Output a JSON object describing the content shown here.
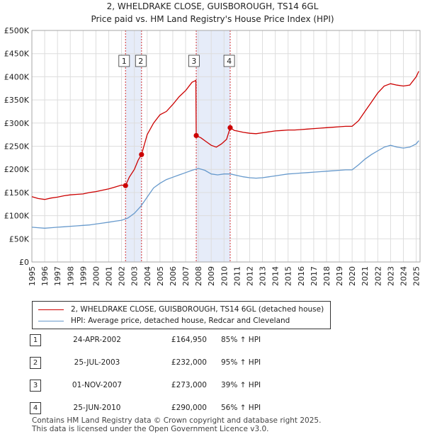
{
  "title": "2, WHELDRAKE CLOSE, GUISBOROUGH, TS14 6GL",
  "subtitle": "Price paid vs. HM Land Registry's House Price Index (HPI)",
  "chart_data": {
    "type": "line",
    "title": "2, WHELDRAKE CLOSE, GUISBOROUGH, TS14 6GL",
    "subtitle": "Price paid vs. HM Land Registry's House Price Index (HPI)",
    "xlim": [
      1995,
      2025.3
    ],
    "ylim": [
      0,
      500000
    ],
    "xticks": [
      1995,
      1996,
      1997,
      1998,
      1999,
      2000,
      2001,
      2002,
      2003,
      2004,
      2005,
      2006,
      2007,
      2008,
      2009,
      2010,
      2011,
      2012,
      2013,
      2014,
      2015,
      2016,
      2017,
      2018,
      2019,
      2020,
      2021,
      2022,
      2023,
      2024,
      2025
    ],
    "yticks": [
      {
        "value": 0,
        "label": "£0"
      },
      {
        "value": 50000,
        "label": "£50K"
      },
      {
        "value": 100000,
        "label": "£100K"
      },
      {
        "value": 150000,
        "label": "£150K"
      },
      {
        "value": 200000,
        "label": "£200K"
      },
      {
        "value": 250000,
        "label": "£250K"
      },
      {
        "value": 300000,
        "label": "£300K"
      },
      {
        "value": 350000,
        "label": "£350K"
      },
      {
        "value": 400000,
        "label": "£400K"
      },
      {
        "value": 450000,
        "label": "£450K"
      },
      {
        "value": 500000,
        "label": "£500K"
      }
    ],
    "grid": true,
    "shaded_periods": [
      [
        2002.31,
        2003.56
      ],
      [
        2007.83,
        2010.48
      ]
    ],
    "series": [
      {
        "name": "2, WHELDRAKE CLOSE, GUISBOROUGH, TS14 6GL (detached house)",
        "color": "#cc0000",
        "x": [
          1995.0,
          1995.5,
          1996.0,
          1996.5,
          1997.0,
          1997.5,
          1998.0,
          1998.5,
          1999.0,
          1999.5,
          2000.0,
          2000.5,
          2001.0,
          2001.5,
          2002.0,
          2002.31,
          2002.6,
          2003.0,
          2003.3,
          2003.56,
          2004.0,
          2004.5,
          2005.0,
          2005.5,
          2006.0,
          2006.5,
          2007.0,
          2007.5,
          2007.8,
          2007.83,
          2008.2,
          2008.6,
          2009.0,
          2009.4,
          2009.8,
          2010.2,
          2010.48,
          2010.8,
          2011.0,
          2011.5,
          2012.0,
          2012.5,
          2013.0,
          2013.5,
          2014.0,
          2014.5,
          2015.0,
          2015.5,
          2016.0,
          2016.5,
          2017.0,
          2017.5,
          2018.0,
          2018.5,
          2019.0,
          2019.5,
          2020.0,
          2020.5,
          2021.0,
          2021.5,
          2022.0,
          2022.5,
          2023.0,
          2023.5,
          2024.0,
          2024.5,
          2025.0,
          2025.2
        ],
        "y": [
          141000,
          137000,
          135000,
          138000,
          140000,
          143000,
          145000,
          146000,
          147000,
          150000,
          152000,
          155000,
          158000,
          162000,
          166000,
          164950,
          183000,
          200000,
          220000,
          232000,
          275000,
          300000,
          318000,
          325000,
          340000,
          357000,
          370000,
          388000,
          392000,
          273000,
          268000,
          260000,
          252000,
          248000,
          255000,
          265000,
          290000,
          284000,
          283000,
          280000,
          278000,
          277000,
          279000,
          281000,
          283000,
          284000,
          285000,
          285000,
          286000,
          287000,
          288000,
          289000,
          290000,
          291000,
          292000,
          293000,
          293000,
          305000,
          325000,
          345000,
          365000,
          380000,
          385000,
          382000,
          380000,
          382000,
          400000,
          412000
        ]
      },
      {
        "name": "HPI: Average price, detached house, Redcar and Cleveland",
        "color": "#6699cc",
        "x": [
          1995.0,
          1995.5,
          1996.0,
          1996.5,
          1997.0,
          1997.5,
          1998.0,
          1998.5,
          1999.0,
          1999.5,
          2000.0,
          2000.5,
          2001.0,
          2001.5,
          2002.0,
          2002.5,
          2003.0,
          2003.5,
          2004.0,
          2004.5,
          2005.0,
          2005.5,
          2006.0,
          2006.5,
          2007.0,
          2007.5,
          2008.0,
          2008.5,
          2009.0,
          2009.5,
          2010.0,
          2010.5,
          2011.0,
          2011.5,
          2012.0,
          2012.5,
          2013.0,
          2013.5,
          2014.0,
          2014.5,
          2015.0,
          2015.5,
          2016.0,
          2016.5,
          2017.0,
          2017.5,
          2018.0,
          2018.5,
          2019.0,
          2019.5,
          2020.0,
          2020.5,
          2021.0,
          2021.5,
          2022.0,
          2022.5,
          2023.0,
          2023.5,
          2024.0,
          2024.5,
          2025.0,
          2025.2
        ],
        "y": [
          75000,
          74000,
          73000,
          74000,
          75000,
          76000,
          77000,
          78000,
          79000,
          80000,
          82000,
          84000,
          86000,
          88000,
          90000,
          95000,
          105000,
          120000,
          140000,
          160000,
          170000,
          178000,
          183000,
          188000,
          193000,
          198000,
          202000,
          198000,
          190000,
          188000,
          190000,
          190000,
          187000,
          184000,
          182000,
          181000,
          182000,
          184000,
          186000,
          188000,
          190000,
          191000,
          192000,
          193000,
          194000,
          195000,
          196000,
          197000,
          198000,
          199000,
          199000,
          210000,
          222000,
          232000,
          240000,
          248000,
          252000,
          248000,
          246000,
          248000,
          255000,
          262000
        ]
      }
    ],
    "sales": [
      {
        "num": "1",
        "x": 2002.31,
        "y": 164950
      },
      {
        "num": "2",
        "x": 2003.56,
        "y": 232000
      },
      {
        "num": "3",
        "x": 2007.83,
        "y": 273000
      },
      {
        "num": "4",
        "x": 2010.48,
        "y": 290000
      }
    ]
  },
  "legend": {
    "property_label": "2, WHELDRAKE CLOSE, GUISBOROUGH, TS14 6GL (detached house)",
    "hpi_label": "HPI: Average price, detached house, Redcar and Cleveland"
  },
  "transactions": [
    {
      "num": "1",
      "date": "24-APR-2002",
      "price": "£164,950",
      "hpi": "85% ↑ HPI"
    },
    {
      "num": "2",
      "date": "25-JUL-2003",
      "price": "£232,000",
      "hpi": "95% ↑ HPI"
    },
    {
      "num": "3",
      "date": "01-NOV-2007",
      "price": "£273,000",
      "hpi": "39% ↑ HPI"
    },
    {
      "num": "4",
      "date": "25-JUN-2010",
      "price": "£290,000",
      "hpi": "56% ↑ HPI"
    }
  ],
  "footer": {
    "line1": "Contains HM Land Registry data © Crown copyright and database right 2025.",
    "line2": "This data is licensed under the Open Government Licence v3.0."
  },
  "colors": {
    "property": "#cc0000",
    "hpi": "#6699cc",
    "shade": "#dde6f7",
    "grid": "#dddddd"
  }
}
